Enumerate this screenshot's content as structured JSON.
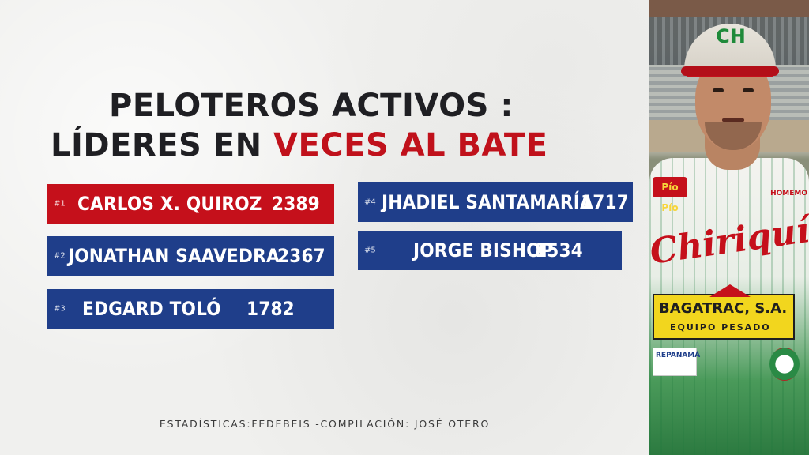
{
  "title": {
    "line1": "PELOTEROS ACTIVOS :",
    "line2_prefix": "LÍDERES EN ",
    "line2_accent": "VECES AL BATE"
  },
  "leaders": [
    {
      "rank": "#1",
      "name": "CARLOS X. QUIROZ",
      "value": "2389",
      "color": "red"
    },
    {
      "rank": "#2",
      "name": "JONATHAN SAAVEDRA",
      "value": "2367",
      "color": "blue"
    },
    {
      "rank": "#3",
      "name": "EDGARD TOLÓ",
      "value": "1782",
      "color": "blue"
    },
    {
      "rank": "#4",
      "name": "JHADIEL SANTAMARÍA",
      "value": "1717",
      "color": "blue"
    },
    {
      "rank": "#5",
      "name": "JORGE BISHOP",
      "value": "1534",
      "color": "blue"
    }
  ],
  "footer": "ESTADÍSTICAS:FEDEBEIS -COMPILACIÓN: JOSÉ OTERO",
  "photo": {
    "cap_logo": "CH",
    "jersey_script": "Chiriquí",
    "sponsor_left": "Pío Pío",
    "sponsor_right": "HOMEMO",
    "sponsor_main": "BAGATRAC, S.A.",
    "sponsor_main_sub": "EQUIPO PESADO",
    "patch": "REPANAMÁ"
  },
  "colors": {
    "red": "#c5101b",
    "blue": "#1f3e8a",
    "title_dark": "#1f1f23",
    "background": "#f0f0ee"
  }
}
